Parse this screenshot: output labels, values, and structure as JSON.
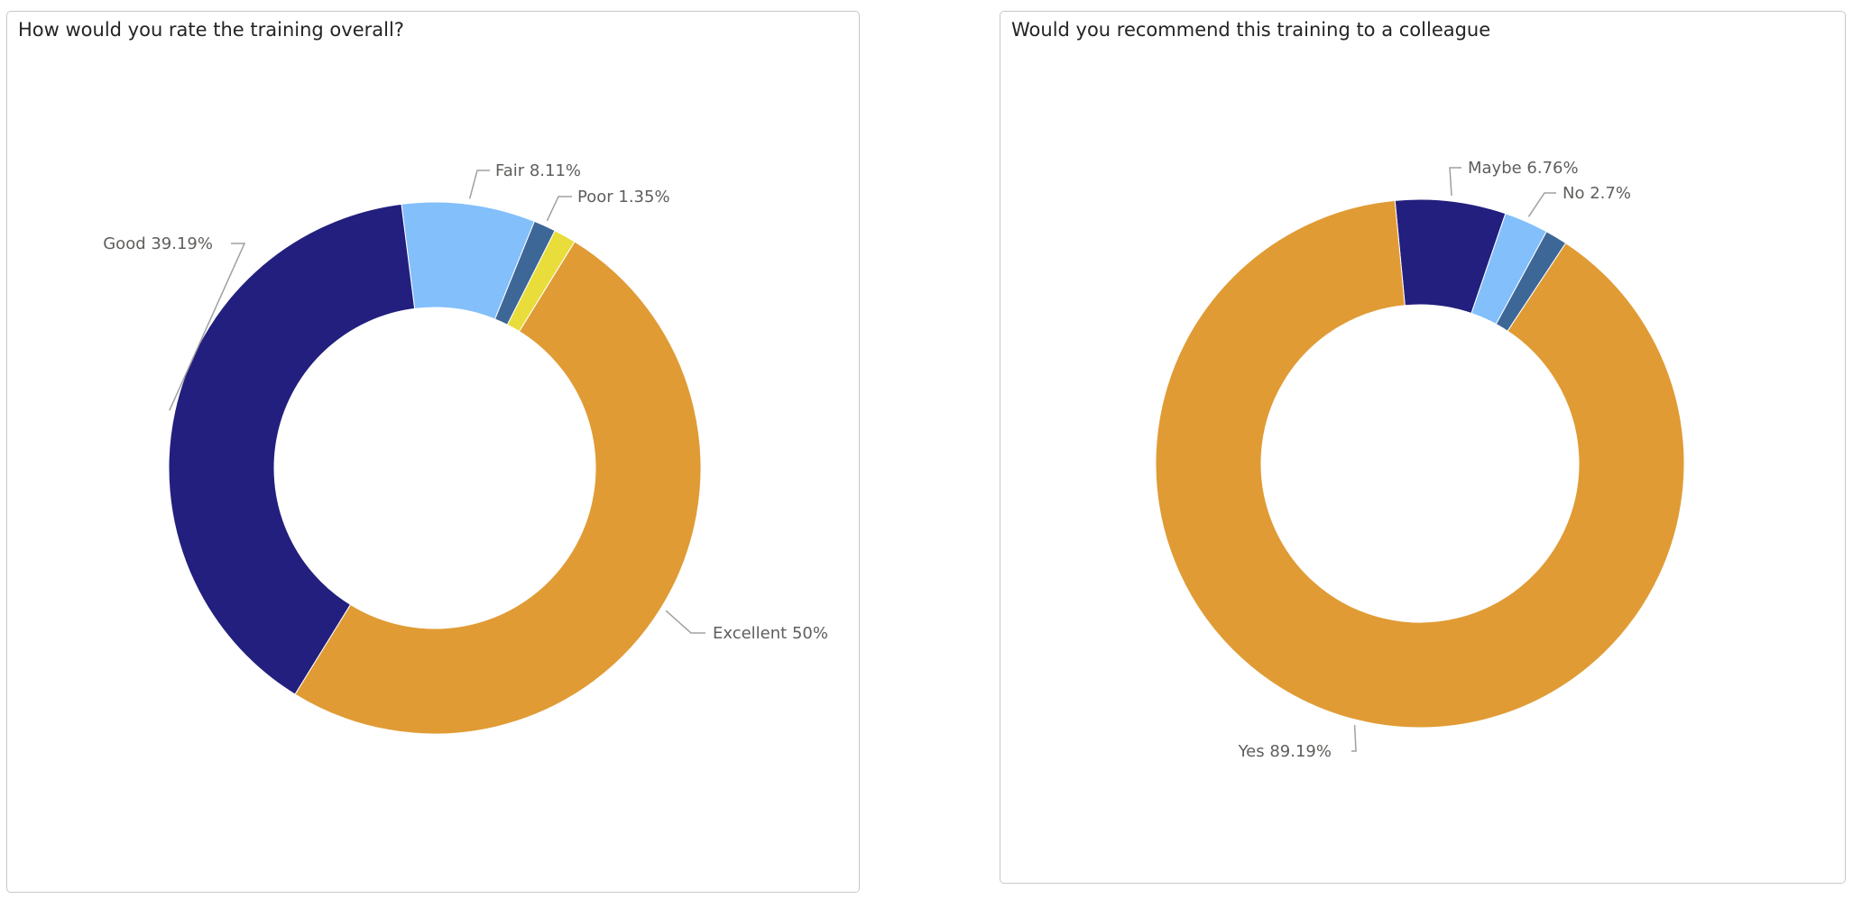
{
  "chart_data": [
    {
      "type": "pie",
      "title": "How would you rate the training overall?",
      "categories": [
        "Fair",
        "Poor",
        "",
        "Excellent",
        "Good"
      ],
      "values": [
        8.11,
        1.35,
        1.35,
        50,
        39.19
      ],
      "colors": [
        "#82bffb",
        "#3d6797",
        "#e8dd3a",
        "#e09b35",
        "#231f7e"
      ],
      "labels": [
        "Fair 8.11%",
        "Poor 1.35%",
        "",
        "Excellent 50%",
        "Good 39.19%"
      ],
      "donut": true,
      "legend": "none"
    },
    {
      "type": "pie",
      "title": "Would you recommend this training to a colleague",
      "categories": [
        "Maybe",
        "No",
        "",
        "Yes"
      ],
      "values": [
        6.76,
        2.7,
        1.35,
        89.19
      ],
      "colors": [
        "#231f7e",
        "#82bffb",
        "#3d6797",
        "#e09b35"
      ],
      "labels": [
        "Maybe 6.76%",
        "No 2.7%",
        "",
        "Yes 89.19%"
      ],
      "donut": true,
      "legend": "none"
    }
  ]
}
